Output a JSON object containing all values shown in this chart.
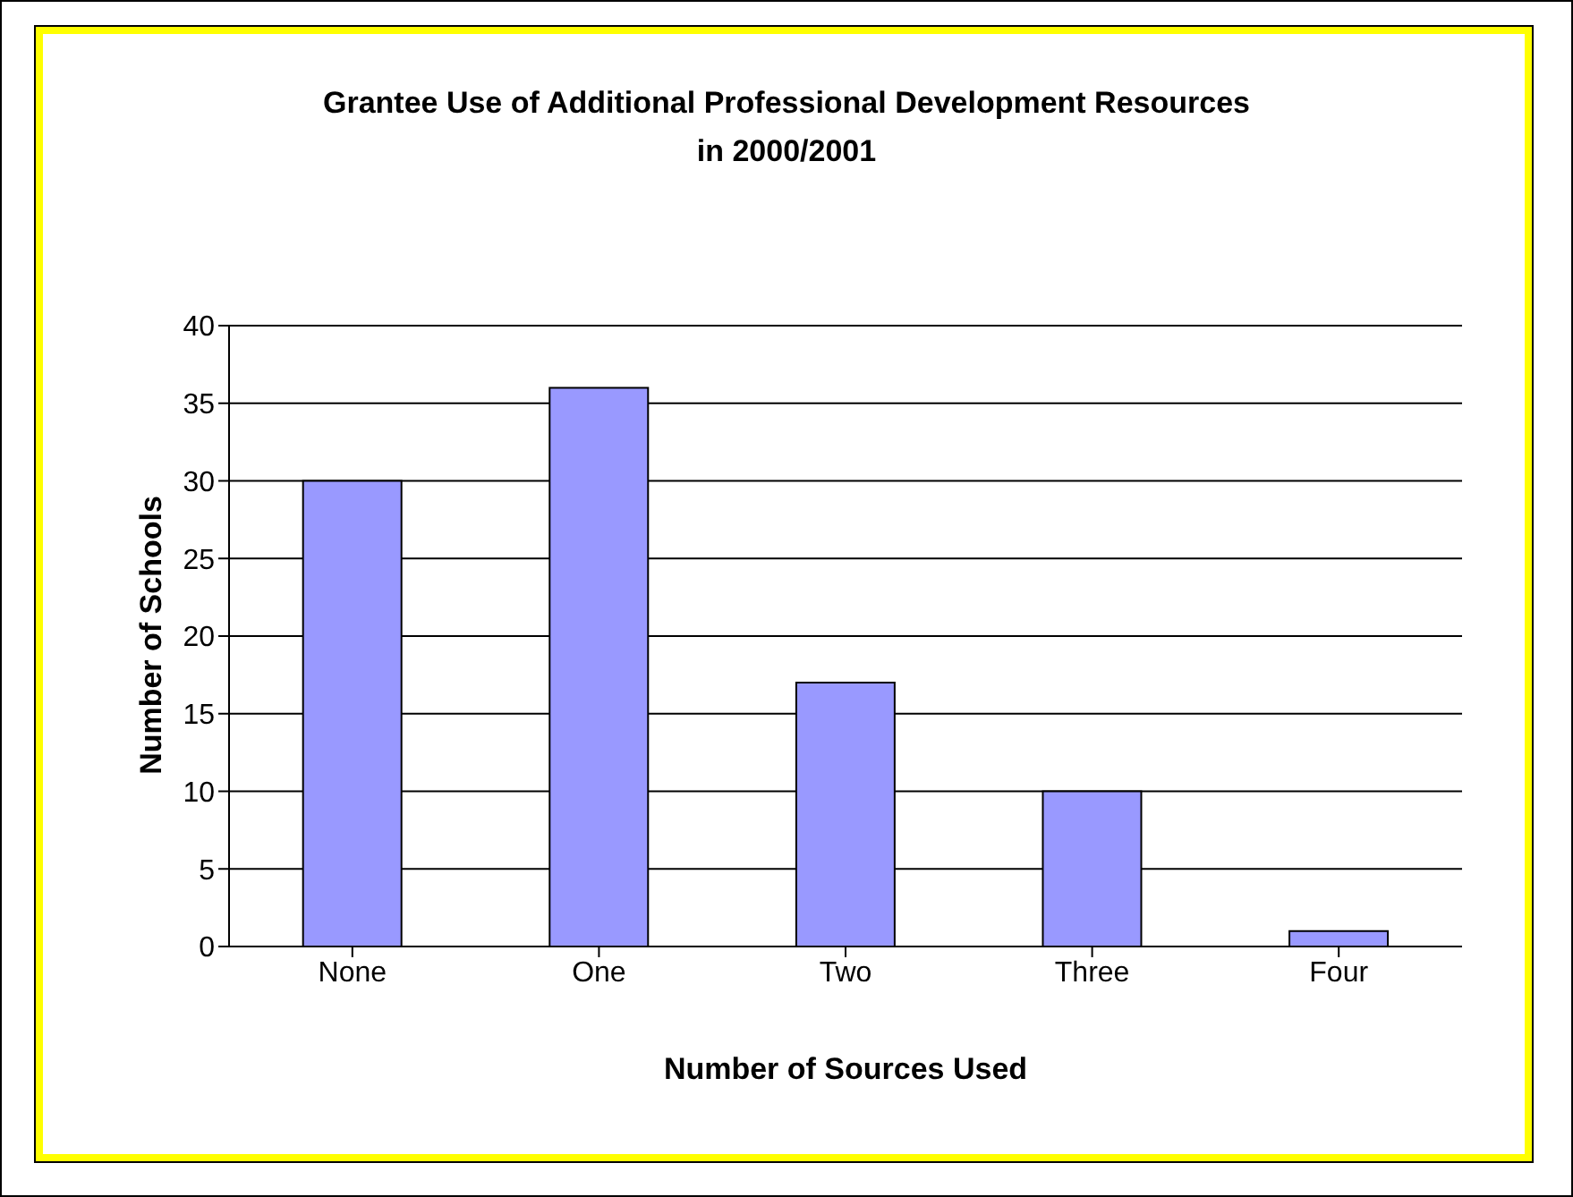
{
  "chart_data": {
    "type": "bar",
    "title": "Grantee Use of Additional Professional Development Resources\nin 2000/2001",
    "xlabel": "Number of Sources Used",
    "ylabel": "Number of Schools",
    "categories": [
      "None",
      "One",
      "Two",
      "Three",
      "Four"
    ],
    "values": [
      30,
      36,
      17,
      10,
      1
    ],
    "color": "#9999ff",
    "ylim": [
      0,
      40
    ],
    "yticks": [
      0,
      5,
      10,
      15,
      20,
      25,
      30,
      35,
      40
    ],
    "grid": "y"
  }
}
